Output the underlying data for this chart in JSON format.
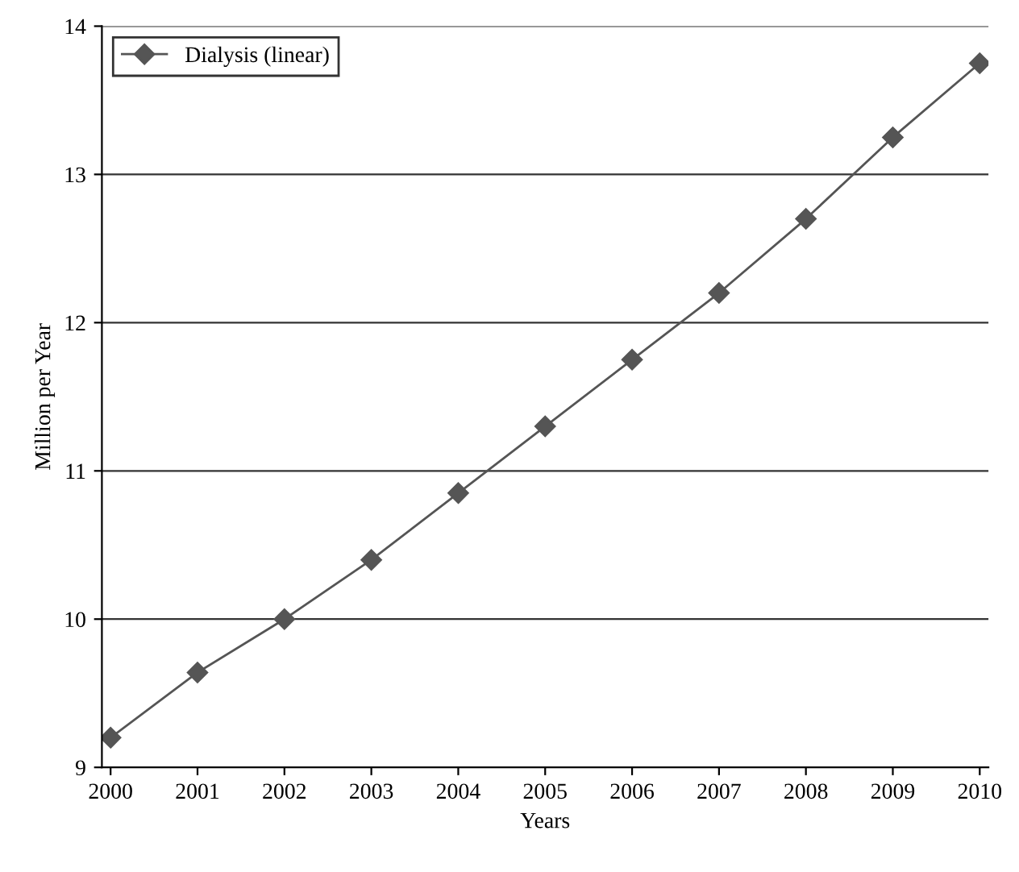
{
  "chart_data": {
    "type": "line",
    "xlabel": "Years",
    "ylabel": "Million per Year",
    "categories": [
      "2000",
      "2001",
      "2002",
      "2003",
      "2004",
      "2005",
      "2006",
      "2007",
      "2008",
      "2009",
      "2010"
    ],
    "series": [
      {
        "name": "Dialysis (linear)",
        "color": "#555555",
        "values": [
          9.2,
          9.64,
          10.0,
          10.4,
          10.85,
          11.3,
          11.75,
          12.2,
          12.7,
          13.25,
          13.75
        ]
      }
    ],
    "ylim": [
      9,
      14
    ],
    "yticks": [
      9,
      10,
      11,
      12,
      13,
      14
    ],
    "grid": "y",
    "legend": "top left",
    "marker": "diamond",
    "line_style": "solid"
  }
}
